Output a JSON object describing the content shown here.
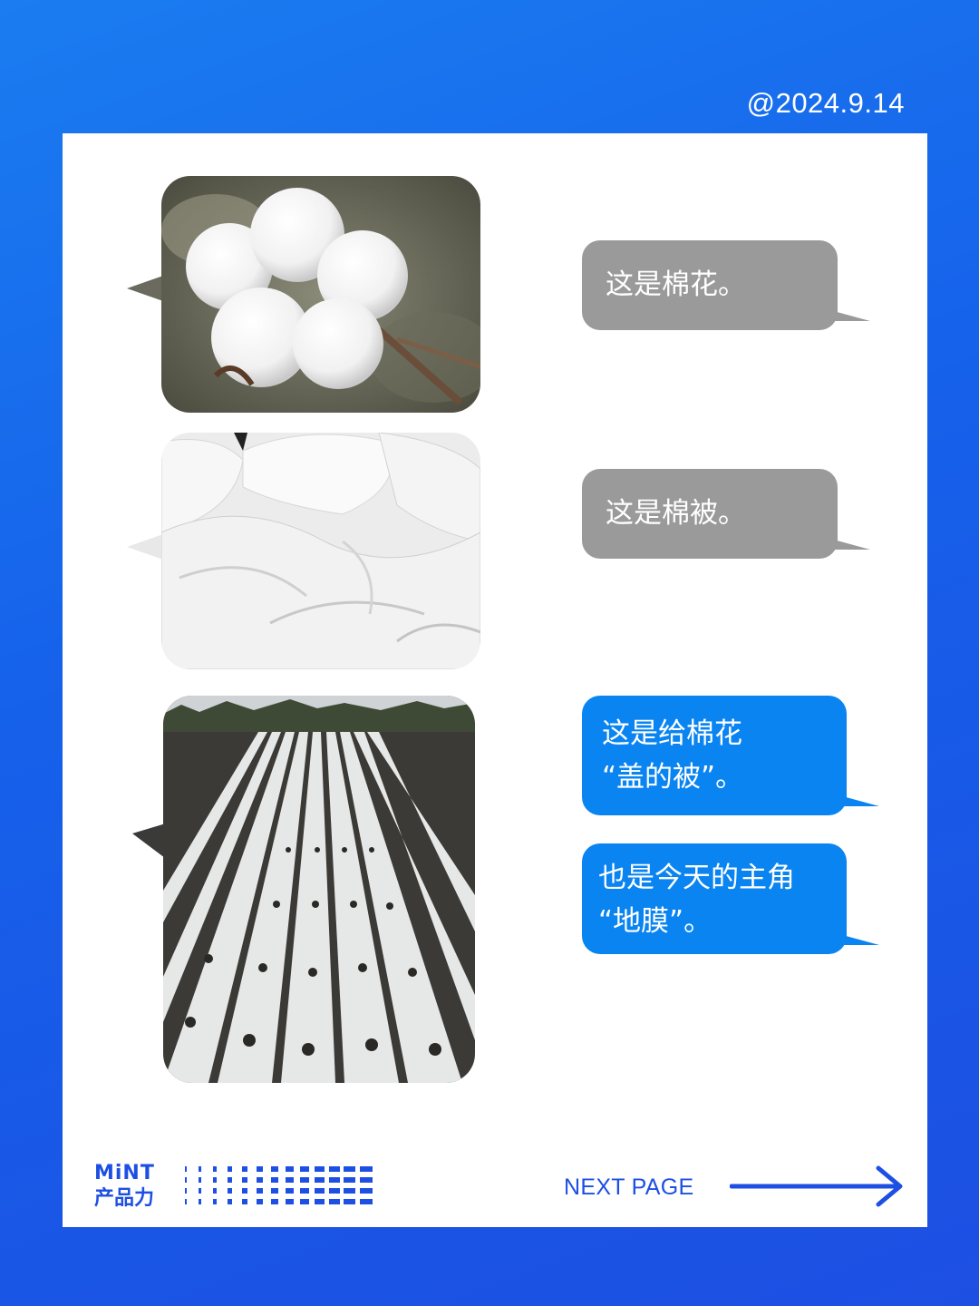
{
  "header": {
    "date": "@2024.9.14"
  },
  "messages": {
    "m1": {
      "text": "这是棉花。",
      "image": "cotton-boll-photo"
    },
    "m2": {
      "text": "这是棉被。",
      "image": "white-quilt-photo"
    },
    "m3": {
      "line1": "这是给棉花",
      "line2": "“盖的被”。",
      "image": "plastic-mulch-field-photo"
    },
    "m4": {
      "line1": "也是今天的主角",
      "line2": "“地膜”。"
    }
  },
  "footer": {
    "brand_line1": "MiNT",
    "brand_line2": "产品力",
    "next_label": "NEXT PAGE"
  },
  "colors": {
    "background": "#1660ea",
    "gray_bubble": "#9a9a9a",
    "blue_bubble": "#0a84f0",
    "accent": "#1d4fe3"
  },
  "icons": {
    "arrow": "right-arrow-icon"
  }
}
